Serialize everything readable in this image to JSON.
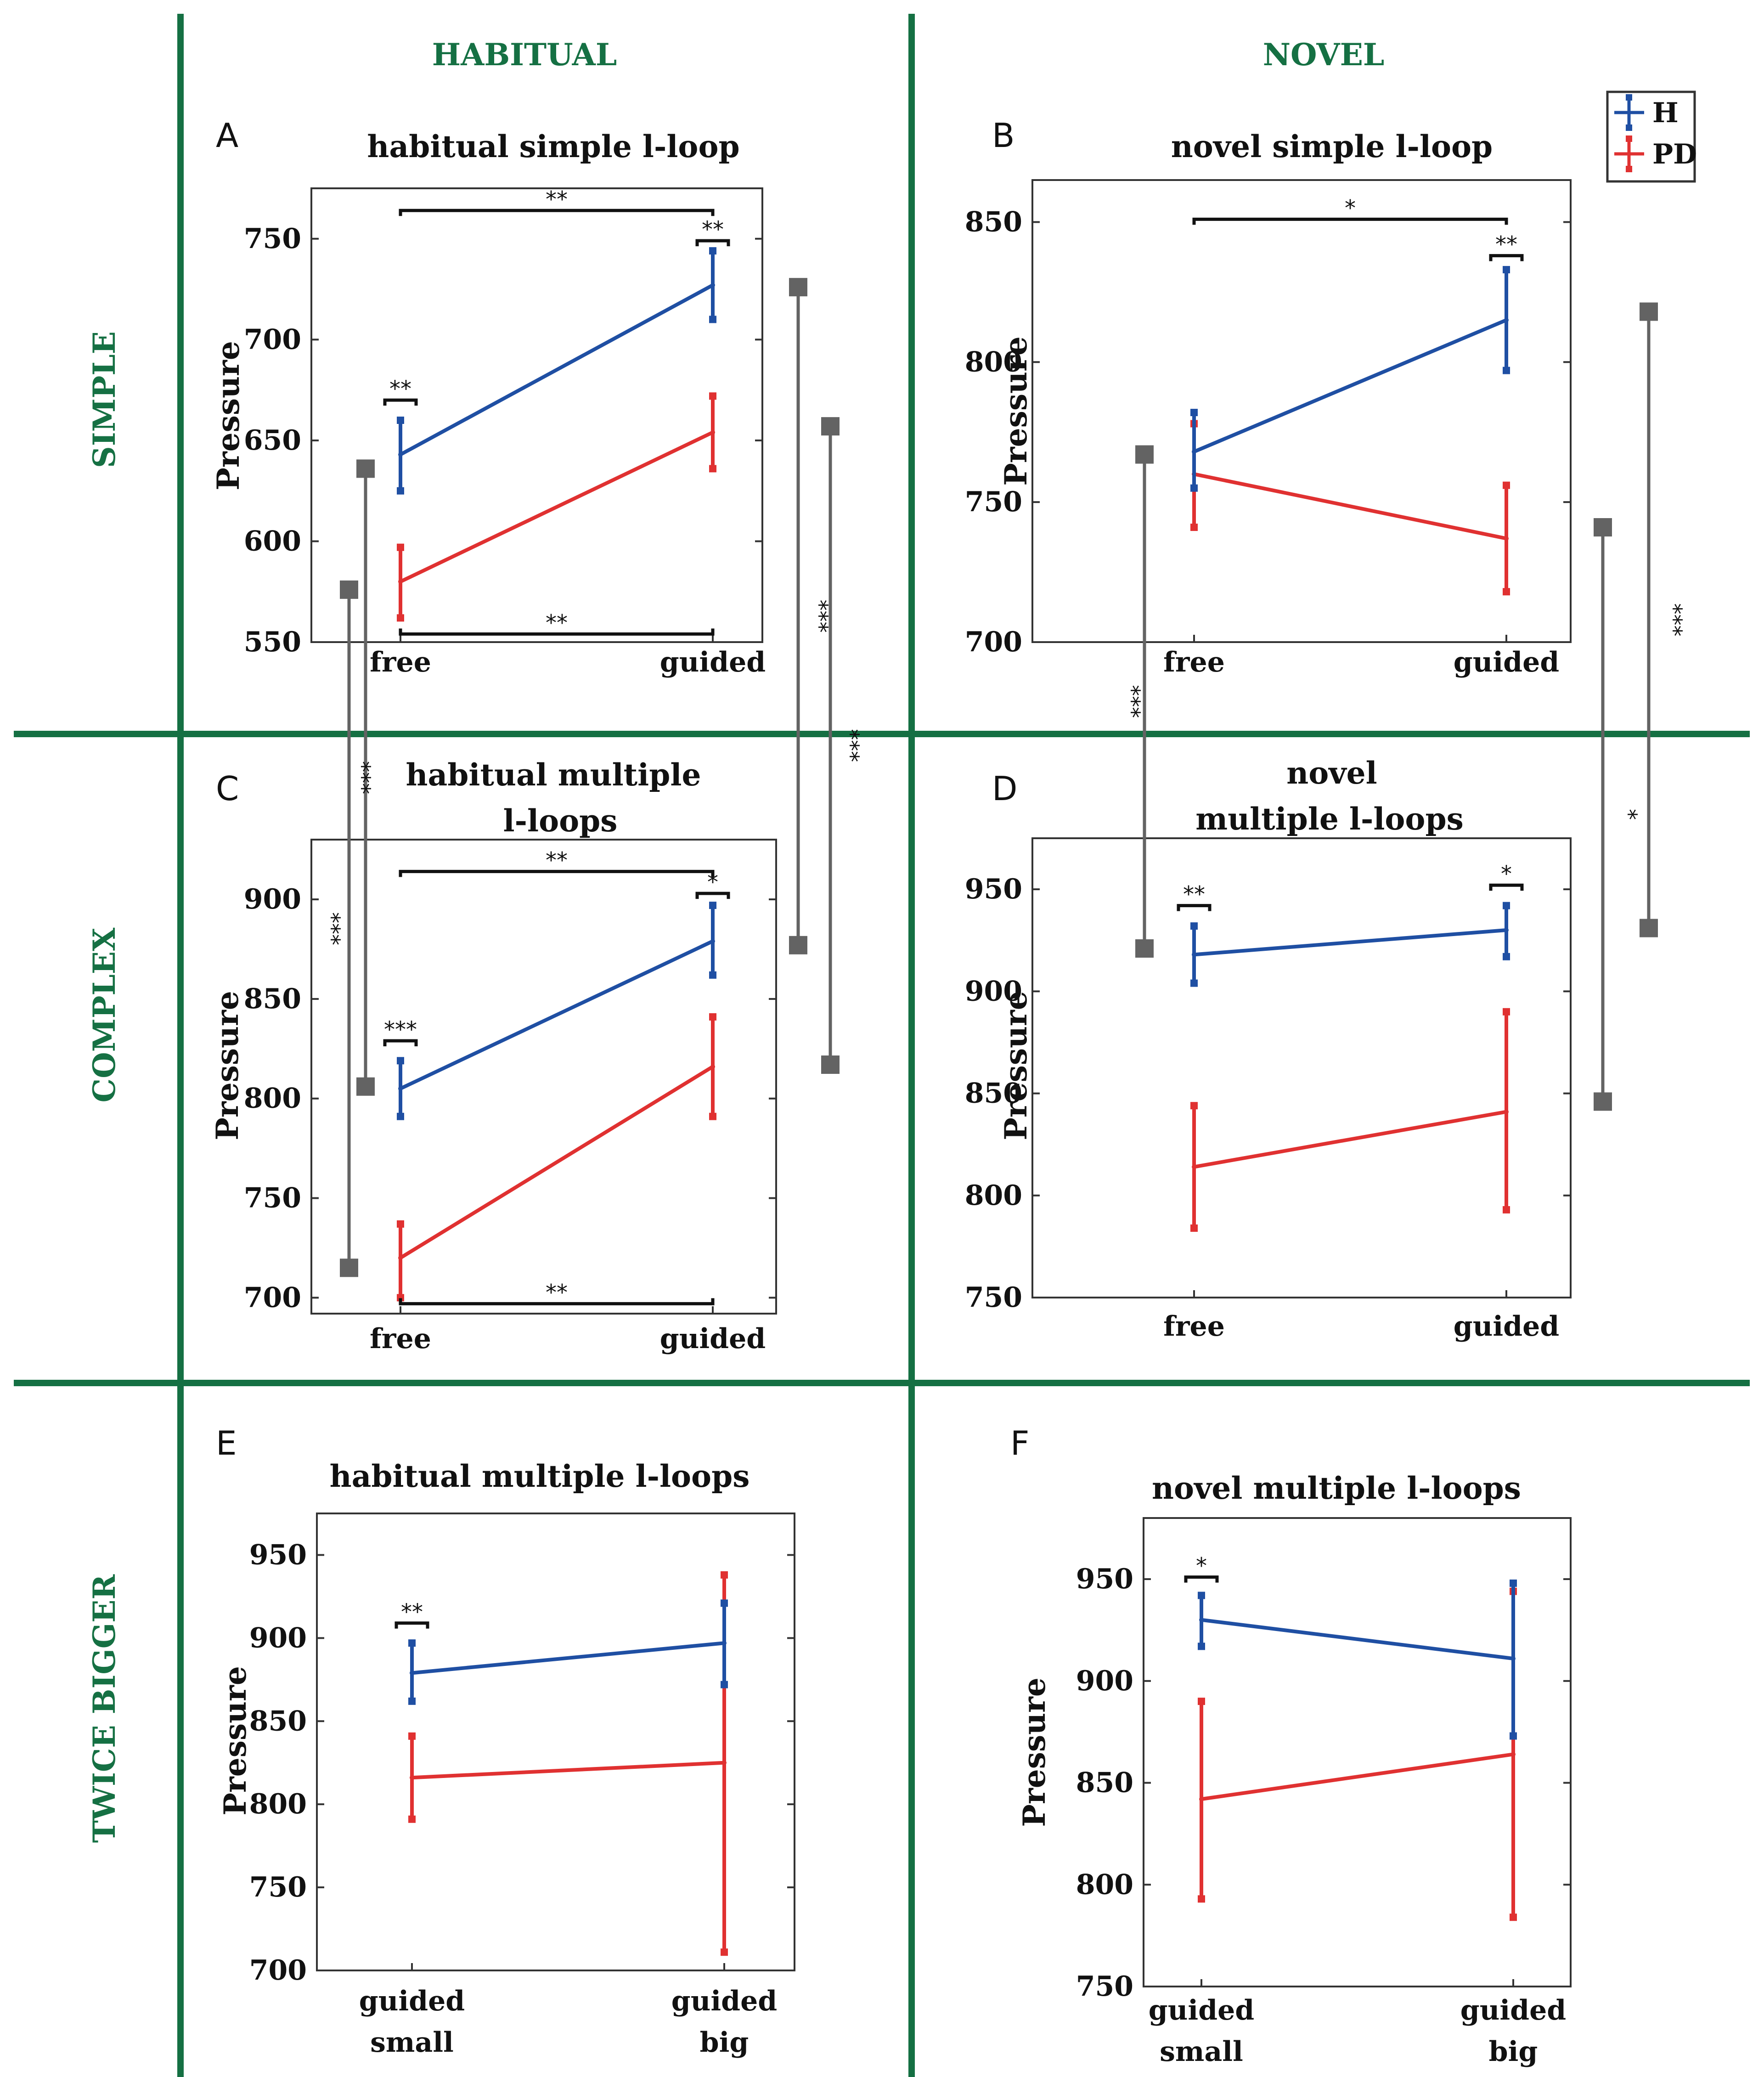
{
  "colors": {
    "healthy": "#1f4fa3",
    "pd": "#e03131",
    "divider": "#157043",
    "connector": "#636363",
    "axis": "#333333"
  },
  "headers": {
    "columns": [
      "HABITUAL",
      "NOVEL"
    ],
    "rows": [
      "SIMPLE",
      "COMPLEX",
      "TWICE BIGGER"
    ]
  },
  "legend": {
    "entries": [
      "H",
      "PD"
    ]
  },
  "chart_data": [
    {
      "id": "A",
      "panel_label": "A",
      "type": "line",
      "title": [
        "habitual simple l-loop"
      ],
      "ylabel": "Pressure",
      "categories": [
        [
          "free"
        ],
        [
          "guided"
        ]
      ],
      "ylim": [
        550,
        775
      ],
      "yticks": [
        550,
        600,
        650,
        700,
        750
      ],
      "series": [
        {
          "name": "H",
          "values": [
            643,
            727
          ],
          "err_low": [
            625,
            710
          ],
          "err_high": [
            660,
            744
          ]
        },
        {
          "name": "PD",
          "values": [
            580,
            654
          ],
          "err_low": [
            562,
            636
          ],
          "err_high": [
            597,
            672
          ]
        }
      ],
      "significance": [
        {
          "label": "**",
          "type": "between",
          "y": 764
        },
        {
          "label": "**",
          "type": "between",
          "y": 554
        },
        {
          "label": "**",
          "type": "pair",
          "x": 0,
          "y": 670
        },
        {
          "label": "**",
          "type": "pair",
          "x": 1,
          "y": 749
        }
      ]
    },
    {
      "id": "B",
      "panel_label": "B",
      "type": "line",
      "title": [
        "novel simple l-loop"
      ],
      "ylabel": "Pressure",
      "categories": [
        [
          "free"
        ],
        [
          "guided"
        ]
      ],
      "ylim": [
        700,
        865
      ],
      "yticks": [
        700,
        750,
        800,
        850
      ],
      "series": [
        {
          "name": "H",
          "values": [
            768,
            815
          ],
          "err_low": [
            755,
            797
          ],
          "err_high": [
            782,
            833
          ]
        },
        {
          "name": "PD",
          "values": [
            760,
            737
          ],
          "err_low": [
            741,
            718
          ],
          "err_high": [
            778,
            756
          ]
        }
      ],
      "significance": [
        {
          "label": "*",
          "type": "between",
          "y": 851
        },
        {
          "label": "**",
          "type": "pair",
          "x": 1,
          "y": 838
        }
      ]
    },
    {
      "id": "C",
      "panel_label": "C",
      "type": "line",
      "title": [
        "habitual multiple",
        "l-loops"
      ],
      "ylabel": "Pressure",
      "categories": [
        [
          "free"
        ],
        [
          "guided"
        ]
      ],
      "ylim": [
        692,
        930
      ],
      "yticks": [
        700,
        750,
        800,
        850,
        900
      ],
      "series": [
        {
          "name": "H",
          "values": [
            805,
            879
          ],
          "err_low": [
            791,
            862
          ],
          "err_high": [
            819,
            897
          ]
        },
        {
          "name": "PD",
          "values": [
            720,
            816
          ],
          "err_low": [
            700,
            791
          ],
          "err_high": [
            737,
            841
          ]
        }
      ],
      "significance": [
        {
          "label": "**",
          "type": "between",
          "y": 914
        },
        {
          "label": "**",
          "type": "between",
          "y": 697
        },
        {
          "label": "***",
          "type": "pair",
          "x": 0,
          "y": 829
        },
        {
          "label": "*",
          "type": "pair",
          "x": 1,
          "y": 903
        }
      ]
    },
    {
      "id": "D",
      "panel_label": "D",
      "type": "line",
      "title": [
        "novel",
        "multiple l-loops"
      ],
      "ylabel": "Pressure",
      "categories": [
        [
          "free"
        ],
        [
          "guided"
        ]
      ],
      "ylim": [
        750,
        975
      ],
      "yticks": [
        750,
        800,
        850,
        900,
        950
      ],
      "series": [
        {
          "name": "H",
          "values": [
            918,
            930
          ],
          "err_low": [
            904,
            917
          ],
          "err_high": [
            932,
            942
          ]
        },
        {
          "name": "PD",
          "values": [
            814,
            841
          ],
          "err_low": [
            784,
            793
          ],
          "err_high": [
            844,
            890
          ]
        }
      ],
      "significance": [
        {
          "label": "**",
          "type": "pair",
          "x": 0,
          "y": 942
        },
        {
          "label": "*",
          "type": "pair",
          "x": 1,
          "y": 952
        }
      ]
    },
    {
      "id": "E",
      "panel_label": "E",
      "type": "line",
      "title": [
        "habitual multiple l-loops"
      ],
      "ylabel": "Pressure",
      "categories": [
        [
          "guided",
          "small"
        ],
        [
          "guided",
          "big"
        ]
      ],
      "ylim": [
        700,
        975
      ],
      "yticks": [
        700,
        750,
        800,
        850,
        900,
        950
      ],
      "series": [
        {
          "name": "H",
          "values": [
            879,
            897
          ],
          "err_low": [
            862,
            872
          ],
          "err_high": [
            897,
            921
          ]
        },
        {
          "name": "PD",
          "values": [
            816,
            825
          ],
          "err_low": [
            791,
            711
          ],
          "err_high": [
            841,
            938
          ]
        }
      ],
      "significance": [
        {
          "label": "**",
          "type": "pair",
          "x": 0,
          "y": 909
        }
      ]
    },
    {
      "id": "F",
      "panel_label": "F",
      "type": "line",
      "title": [
        "novel multiple l-loops"
      ],
      "ylabel": "Pressure",
      "categories": [
        [
          "guided",
          "small"
        ],
        [
          "guided",
          "big"
        ]
      ],
      "ylim": [
        750,
        980
      ],
      "yticks": [
        750,
        800,
        850,
        900,
        950
      ],
      "series": [
        {
          "name": "H",
          "values": [
            930,
            911
          ],
          "err_low": [
            917,
            873
          ],
          "err_high": [
            942,
            948
          ]
        },
        {
          "name": "PD",
          "values": [
            842,
            864
          ],
          "err_low": [
            793,
            784
          ],
          "err_high": [
            890,
            944
          ]
        }
      ],
      "significance": [
        {
          "label": "*",
          "type": "pair",
          "x": 0,
          "y": 951
        }
      ]
    }
  ],
  "connectors": [
    {
      "from": "A",
      "from_value": 576,
      "to": "C",
      "to_value": 715,
      "label": "***"
    },
    {
      "from": "A",
      "from_value": 636,
      "to": "C",
      "to_value": 806,
      "label": "***"
    },
    {
      "from": "A",
      "from_value": 726,
      "to": "C",
      "to_value": 877,
      "label": "***"
    },
    {
      "from": "A",
      "from_value": 657,
      "to": "C",
      "to_value": 817,
      "label": "***"
    },
    {
      "from": "B",
      "from_value": 767,
      "to": "D",
      "to_value": 921,
      "label": "***"
    },
    {
      "from": "B",
      "from_value": 741,
      "to": "D",
      "to_value": 846,
      "label": "*"
    },
    {
      "from": "B",
      "from_value": 818,
      "to": "D",
      "to_value": 931,
      "label": "***"
    }
  ]
}
